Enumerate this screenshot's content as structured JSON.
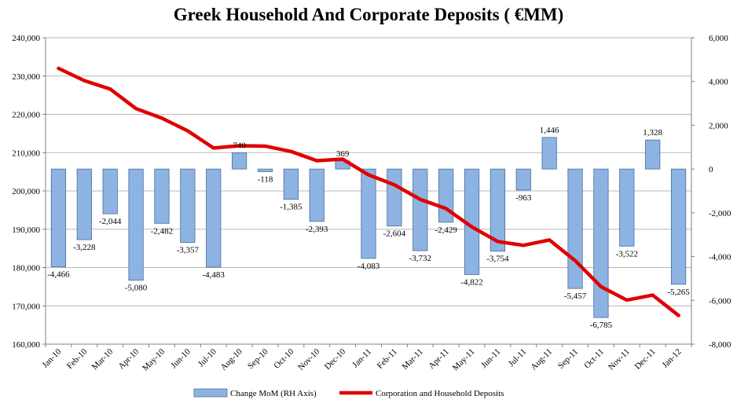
{
  "chart_data": {
    "type": "bar+line",
    "title": "Greek Household And Corporate Deposits ( €MM)",
    "categories": [
      "Jan-10",
      "Feb-10",
      "Mar-10",
      "Apr-10",
      "May-10",
      "Jun-10",
      "Jul-10",
      "Aug-10",
      "Sep-10",
      "Oct-10",
      "Nov-10",
      "Dec-10",
      "Jan-11",
      "Feb-11",
      "Mar-11",
      "Apr-11",
      "May-11",
      "Jun-11",
      "Jul-11",
      "Aug-11",
      "Sep-11",
      "Oct-11",
      "Nov-11",
      "Dec-11",
      "Jan-12"
    ],
    "series": [
      {
        "name": "Change MoM (RH Axis)",
        "type": "bar",
        "axis": "right",
        "color": "#8DB3E2",
        "values": [
          -4466,
          -3228,
          -2044,
          -5080,
          -2482,
          -3357,
          -4483,
          740,
          -118,
          -1385,
          -2393,
          369,
          -4083,
          -2604,
          -3732,
          -2429,
          -4822,
          -3754,
          -963,
          1446,
          -5457,
          -6785,
          -3522,
          1328,
          -5265
        ],
        "labels": [
          "-4,466",
          "-3,228",
          "-2,044",
          "-5,080",
          "-2,482",
          "-3,357",
          "-4,483",
          "740",
          "-118",
          "-1,385",
          "-2,393",
          "369",
          "-4,083",
          "-2,604",
          "-3,732",
          "-2,429",
          "-4,822",
          "-3,754",
          "-963",
          "1,446",
          "-5,457",
          "-6,785",
          "-3,522",
          "1,328",
          "-5,265"
        ]
      },
      {
        "name": "Corporation and Household Deposits",
        "type": "line",
        "axis": "left",
        "color": "#E00000",
        "values": [
          232000,
          228800,
          226600,
          221500,
          219000,
          215700,
          211200,
          211800,
          211700,
          210300,
          207900,
          208300,
          204200,
          201600,
          197800,
          195400,
          190600,
          186800,
          185800,
          187200,
          181800,
          175000,
          171500,
          172800,
          167500
        ]
      }
    ],
    "left_axis": {
      "min": 160000,
      "max": 240000,
      "ticks": [
        "160,000",
        "170,000",
        "180,000",
        "190,000",
        "200,000",
        "210,000",
        "220,000",
        "230,000",
        "240,000"
      ]
    },
    "right_axis": {
      "min": -8000,
      "max": 6000,
      "ticks": [
        "-8,000",
        "-6,000",
        "-4,000",
        "-2,000",
        "0",
        "2,000",
        "4,000",
        "6,000"
      ]
    },
    "grid": true,
    "legend_position": "bottom"
  }
}
